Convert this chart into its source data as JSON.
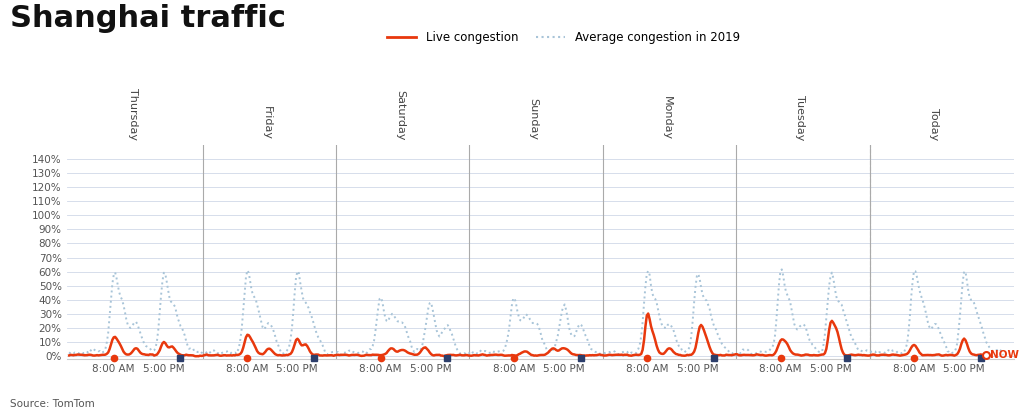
{
  "title": "Shanghai traffic",
  "source": "Source: TomTom",
  "legend_live": "Live congestion",
  "legend_avg": "Average congestion in 2019",
  "now_label": "NOW",
  "days": [
    "Thursday",
    "Friday",
    "Saturday",
    "Sunday",
    "Monday",
    "Tuesday",
    "Today"
  ],
  "y_ticks": [
    0,
    10,
    20,
    30,
    40,
    50,
    60,
    70,
    80,
    90,
    100,
    110,
    120,
    130,
    140
  ],
  "ylim_max": 150,
  "title_fontsize": 22,
  "title_fontweight": "bold",
  "background_color": "#ffffff",
  "grid_color": "#d0d8e8",
  "live_color": "#e8380d",
  "avg_color": "#a8c4d8",
  "day_line_color": "#aaaaaa",
  "today_line_color": "#aaaaaa",
  "orange_dot_color": "#e8380d",
  "blue_dot_color": "#2c3e6b",
  "num_points": 672
}
